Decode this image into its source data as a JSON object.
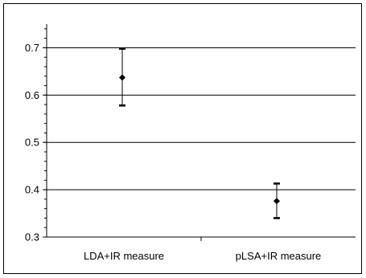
{
  "chart_data": {
    "type": "scatter",
    "title": "",
    "xlabel": "",
    "ylabel": "",
    "categories": [
      "LDA+IR measure",
      "pLSA+IR measure"
    ],
    "series": [
      {
        "values": [
          0.637,
          0.376
        ],
        "error_low": [
          0.578,
          0.34
        ],
        "error_high": [
          0.698,
          0.413
        ]
      }
    ],
    "ylim": [
      0.3,
      0.75
    ],
    "yticks": [
      0.3,
      0.4,
      0.5,
      0.6,
      0.7
    ],
    "ytick_labels": [
      "0.3",
      "0.4",
      "0.5",
      "0.6",
      "0.7"
    ],
    "grid": true,
    "legend": "none",
    "colors": {
      "marker": "#000000",
      "grid": "#000000",
      "background": "#ffffff"
    }
  }
}
